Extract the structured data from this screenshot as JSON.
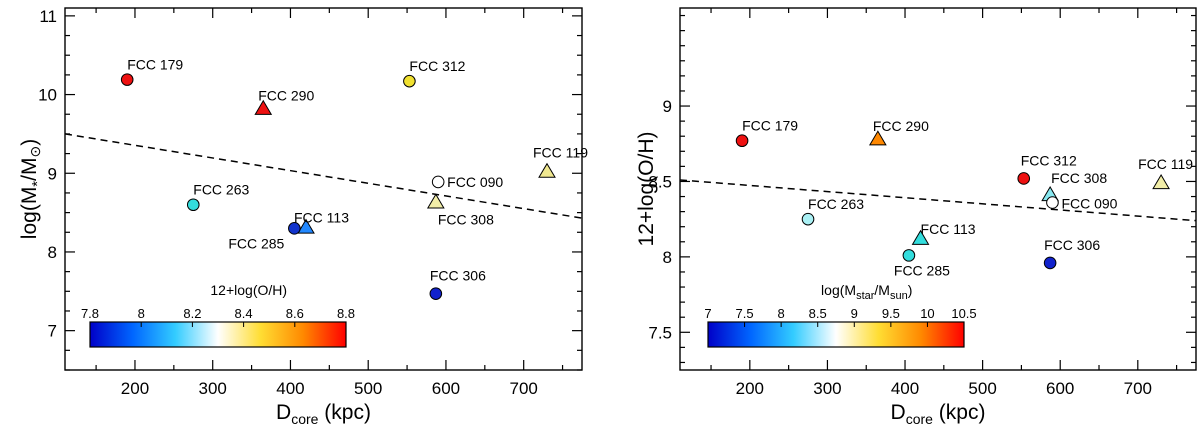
{
  "chart_data": [
    {
      "type": "scatter",
      "ylabel_parts": {
        "base": "log(M",
        "sub": "*",
        "mid": "/M",
        "sun": "⊙",
        "end": ")"
      },
      "xlabel_parts": {
        "base": "D",
        "sub": "core",
        "end": " (kpc)"
      },
      "xlim": [
        110,
        775
      ],
      "ylim": [
        6.5,
        11.1
      ],
      "xticks": [
        200,
        300,
        400,
        500,
        600,
        700
      ],
      "yticks": [
        7,
        8,
        9,
        10,
        11
      ],
      "trend_line": {
        "x": [
          110,
          775
        ],
        "y": [
          9.5,
          8.43
        ],
        "style": "dashed"
      },
      "colorbar": {
        "title": "12+log(O/H)",
        "range": [
          7.8,
          8.8
        ],
        "ticks": [
          "7.8",
          "8",
          "8.2",
          "8.4",
          "8.6",
          "8.8"
        ],
        "colormap": [
          "#0000c8",
          "#0066ff",
          "#33ccff",
          "#ffffff",
          "#ffdd33",
          "#ff8800",
          "#ff0000"
        ]
      },
      "points": [
        {
          "name": "FCC 179",
          "x": 190,
          "y": 10.19,
          "marker": "circle",
          "color": "#ee1111"
        },
        {
          "name": "FCC 290",
          "x": 365,
          "y": 9.82,
          "marker": "triangle",
          "color": "#ee1111"
        },
        {
          "name": "FCC 312",
          "x": 553,
          "y": 10.17,
          "marker": "circle",
          "color": "#f0e030"
        },
        {
          "name": "FCC 119",
          "x": 730,
          "y": 9.02,
          "marker": "triangle",
          "color": "#f0e890"
        },
        {
          "name": "FCC 090",
          "x": 590,
          "y": 8.89,
          "marker": "circle",
          "color": "#ffffff"
        },
        {
          "name": "FCC 308",
          "x": 587,
          "y": 8.63,
          "marker": "triangle",
          "color": "#f2eea8"
        },
        {
          "name": "FCC 263",
          "x": 275,
          "y": 8.6,
          "marker": "circle",
          "color": "#33dddd"
        },
        {
          "name": "FCC 113",
          "x": 420,
          "y": 8.31,
          "marker": "triangle",
          "color": "#2288ff"
        },
        {
          "name": "FCC 285",
          "x": 405,
          "y": 8.3,
          "marker": "circle",
          "color": "#1133cc"
        },
        {
          "name": "FCC 306",
          "x": 587,
          "y": 7.47,
          "marker": "circle",
          "color": "#1122cc"
        }
      ]
    },
    {
      "type": "scatter",
      "ylabel_parts": {
        "base": "12+log(O/H)"
      },
      "xlabel_parts": {
        "base": "D",
        "sub": "core",
        "end": " (kpc)"
      },
      "xlim": [
        110,
        775
      ],
      "ylim": [
        7.25,
        9.65
      ],
      "xticks": [
        200,
        300,
        400,
        500,
        600,
        700
      ],
      "yticks": [
        7.5,
        8,
        8.5,
        9
      ],
      "yticklabels": [
        "7.5",
        "8",
        "8.5",
        "9"
      ],
      "trend_line": {
        "x": [
          110,
          775
        ],
        "y": [
          8.51,
          8.24
        ],
        "style": "dashed"
      },
      "colorbar": {
        "title_parts": {
          "base": "log(M",
          "sub1": "star",
          "mid": "/M",
          "sub2": "sun",
          "end": ")"
        },
        "range": [
          7,
          10.5
        ],
        "ticks": [
          "7",
          "7.5",
          "8",
          "8.5",
          "9",
          "9.5",
          "10",
          "10.5"
        ],
        "colormap": [
          "#0000c8",
          "#0066ff",
          "#33ccff",
          "#ffffff",
          "#ffdd33",
          "#ff8800",
          "#ff0000"
        ]
      },
      "points": [
        {
          "name": "FCC 179",
          "x": 190,
          "y": 8.77,
          "marker": "circle",
          "color": "#ee1111"
        },
        {
          "name": "FCC 290",
          "x": 365,
          "y": 8.78,
          "marker": "triangle",
          "color": "#ff8800"
        },
        {
          "name": "FCC 312",
          "x": 553,
          "y": 8.52,
          "marker": "circle",
          "color": "#ee1111"
        },
        {
          "name": "FCC 308",
          "x": 587,
          "y": 8.41,
          "marker": "triangle",
          "color": "#88e8f0"
        },
        {
          "name": "FCC 090",
          "x": 590,
          "y": 8.36,
          "marker": "circle",
          "color": "#ffffff"
        },
        {
          "name": "FCC 119",
          "x": 730,
          "y": 8.49,
          "marker": "triangle",
          "color": "#f2eea8"
        },
        {
          "name": "FCC 263",
          "x": 275,
          "y": 8.25,
          "marker": "circle",
          "color": "#aaf0f4"
        },
        {
          "name": "FCC 113",
          "x": 420,
          "y": 8.12,
          "marker": "triangle",
          "color": "#33dddd"
        },
        {
          "name": "FCC 285",
          "x": 405,
          "y": 8.01,
          "marker": "circle",
          "color": "#33dddd"
        },
        {
          "name": "FCC 306",
          "x": 587,
          "y": 7.96,
          "marker": "circle",
          "color": "#1122cc"
        }
      ]
    }
  ]
}
